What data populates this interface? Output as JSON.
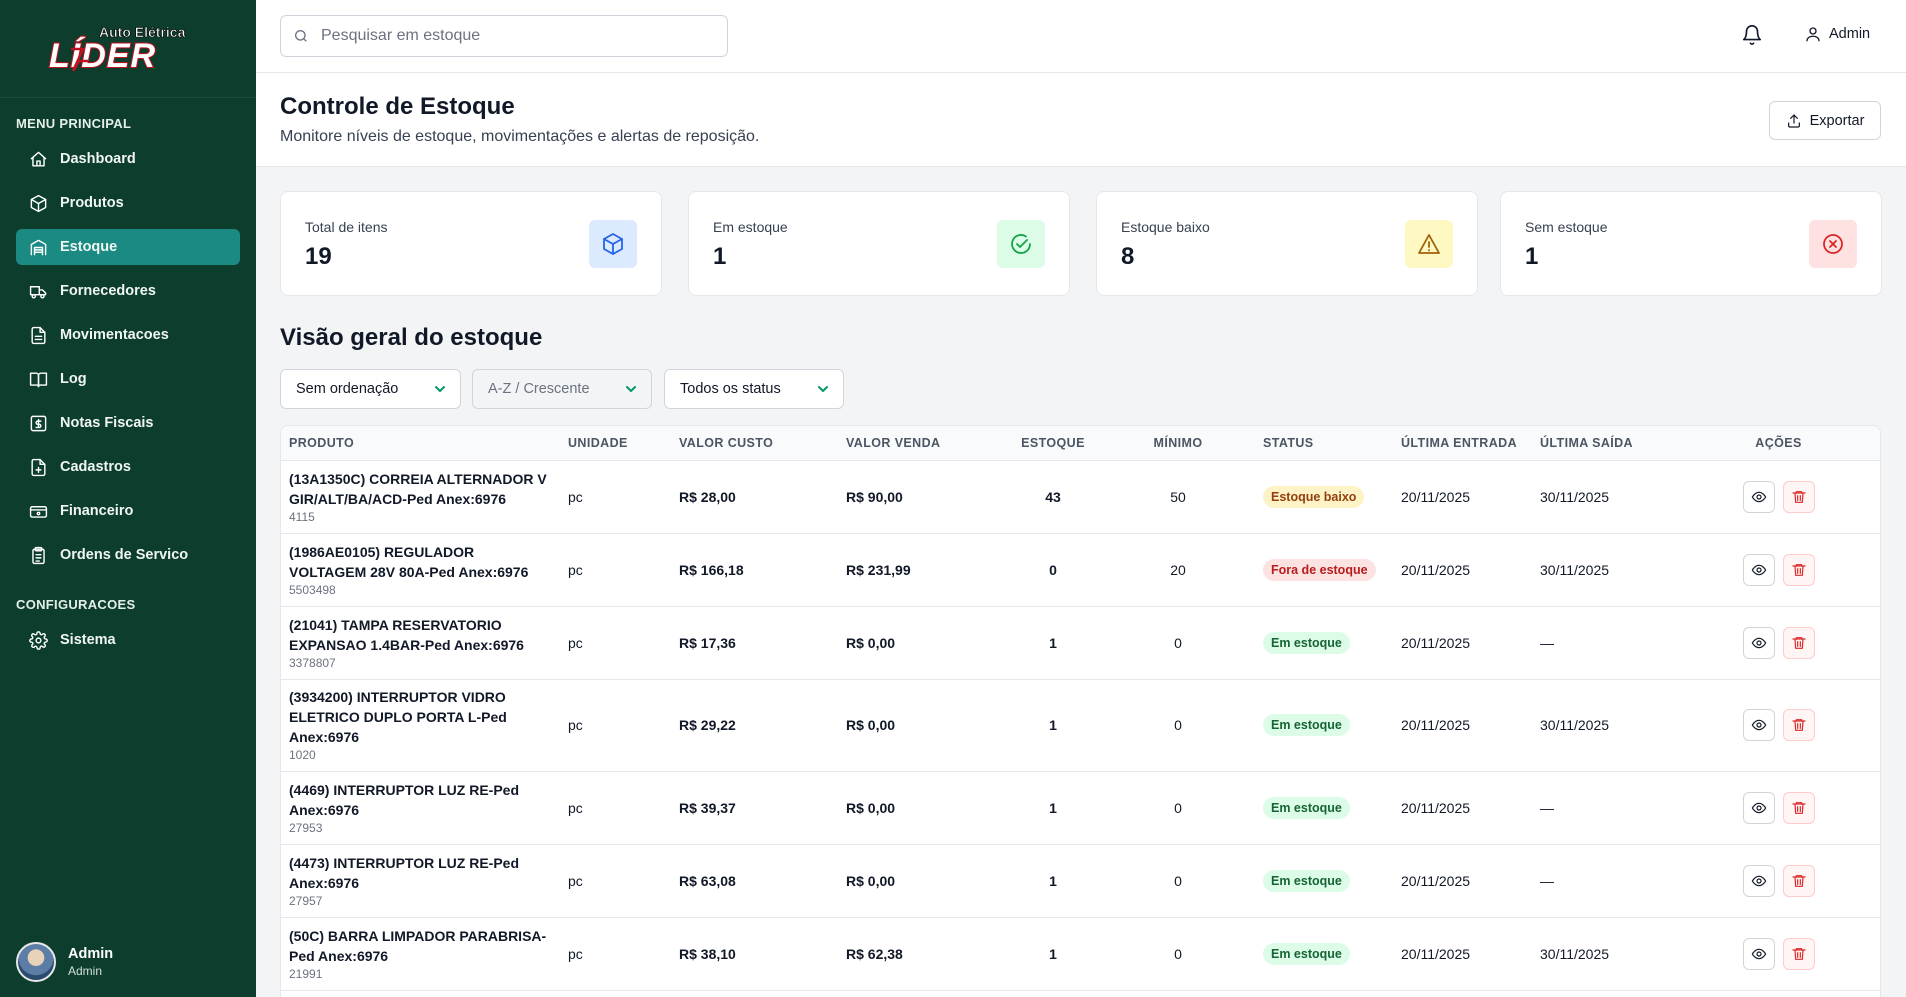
{
  "brand": {
    "line1": "Auto Elétrica",
    "line2": "LÍDER"
  },
  "sidebar": {
    "section_main": "MENU PRINCIPAL",
    "section_config": "CONFIGURACOES",
    "items": [
      {
        "label": "Dashboard",
        "icon": "home-icon"
      },
      {
        "label": "Produtos",
        "icon": "package-icon"
      },
      {
        "label": "Estoque",
        "icon": "warehouse-icon"
      },
      {
        "label": "Fornecedores",
        "icon": "truck-icon"
      },
      {
        "label": "Movimentacoes",
        "icon": "file-icon"
      },
      {
        "label": "Log",
        "icon": "book-icon"
      },
      {
        "label": "Notas Fiscais",
        "icon": "receipt-icon"
      },
      {
        "label": "Cadastros",
        "icon": "file-plus-icon"
      },
      {
        "label": "Financeiro",
        "icon": "wallet-icon"
      },
      {
        "label": "Ordens de Servico",
        "icon": "clipboard-icon"
      }
    ],
    "config_items": [
      {
        "label": "Sistema",
        "icon": "gear-icon"
      }
    ],
    "user": {
      "name": "Admin",
      "role": "Admin"
    }
  },
  "topbar": {
    "search_placeholder": "Pesquisar em estoque",
    "user_label": "Admin"
  },
  "header": {
    "title": "Controle de Estoque",
    "subtitle": "Monitore níveis de estoque, movimentações e alertas de reposição.",
    "export_label": "Exportar"
  },
  "cards": [
    {
      "label": "Total de itens",
      "value": "19",
      "color": "#2563eb",
      "bg": "#dbeafe"
    },
    {
      "label": "Em estoque",
      "value": "1",
      "color": "#16a34a",
      "bg": "#dcfce7"
    },
    {
      "label": "Estoque baixo",
      "value": "8",
      "color": "#a16207",
      "bg": "#fef9c3"
    },
    {
      "label": "Sem estoque",
      "value": "1",
      "color": "#dc2626",
      "bg": "#fee2e2"
    }
  ],
  "overview": {
    "title": "Visão geral do estoque",
    "filters": {
      "sort": "Sem ordenação",
      "order": "A-Z / Crescente",
      "status": "Todos os status"
    }
  },
  "table": {
    "headers": [
      "PRODUTO",
      "UNIDADE",
      "VALOR CUSTO",
      "VALOR VENDA",
      "ESTOQUE",
      "MÍNIMO",
      "STATUS",
      "ÚLTIMA ENTRADA",
      "ÚLTIMA SAÍDA",
      "AÇÕES"
    ],
    "rows": [
      {
        "name": "(13A1350C) CORREIA ALTERNADOR V GIR/ALT/BA/ACD-Ped Anex:6976",
        "code": "4115",
        "unit": "pc",
        "cost": "R$ 28,00",
        "sale": "R$ 90,00",
        "stock": "43",
        "min": "50",
        "status": "Estoque baixo",
        "status_type": "low",
        "last_in": "20/11/2025",
        "last_out": "30/11/2025"
      },
      {
        "name": "(1986AE0105) REGULADOR VOLTAGEM 28V 80A-Ped Anex:6976",
        "code": "5503498",
        "unit": "pc",
        "cost": "R$ 166,18",
        "sale": "R$ 231,99",
        "stock": "0",
        "min": "20",
        "status": "Fora de estoque",
        "status_type": "out",
        "last_in": "20/11/2025",
        "last_out": "30/11/2025"
      },
      {
        "name": "(21041) TAMPA RESERVATORIO EXPANSAO 1.4BAR-Ped Anex:6976",
        "code": "3378807",
        "unit": "pc",
        "cost": "R$ 17,36",
        "sale": "R$ 0,00",
        "stock": "1",
        "min": "0",
        "status": "Em estoque",
        "status_type": "ok",
        "last_in": "20/11/2025",
        "last_out": "—"
      },
      {
        "name": "(3934200) INTERRUPTOR VIDRO ELETRICO DUPLO PORTA L-Ped Anex:6976",
        "code": "1020",
        "unit": "pc",
        "cost": "R$ 29,22",
        "sale": "R$ 0,00",
        "stock": "1",
        "min": "0",
        "status": "Em estoque",
        "status_type": "ok",
        "last_in": "20/11/2025",
        "last_out": "30/11/2025"
      },
      {
        "name": "(4469) INTERRUPTOR LUZ RE-Ped Anex:6976",
        "code": "27953",
        "unit": "pc",
        "cost": "R$ 39,37",
        "sale": "R$ 0,00",
        "stock": "1",
        "min": "0",
        "status": "Em estoque",
        "status_type": "ok",
        "last_in": "20/11/2025",
        "last_out": "—"
      },
      {
        "name": "(4473) INTERRUPTOR LUZ RE-Ped Anex:6976",
        "code": "27957",
        "unit": "pc",
        "cost": "R$ 63,08",
        "sale": "R$ 0,00",
        "stock": "1",
        "min": "0",
        "status": "Em estoque",
        "status_type": "ok",
        "last_in": "20/11/2025",
        "last_out": "—"
      },
      {
        "name": "(50C) BARRA LIMPADOR PARABRISA-Ped Anex:6976",
        "code": "21991",
        "unit": "pc",
        "cost": "R$ 38,10",
        "sale": "R$ 62,38",
        "stock": "1",
        "min": "0",
        "status": "Em estoque",
        "status_type": "ok",
        "last_in": "20/11/2025",
        "last_out": "30/11/2025"
      }
    ]
  }
}
